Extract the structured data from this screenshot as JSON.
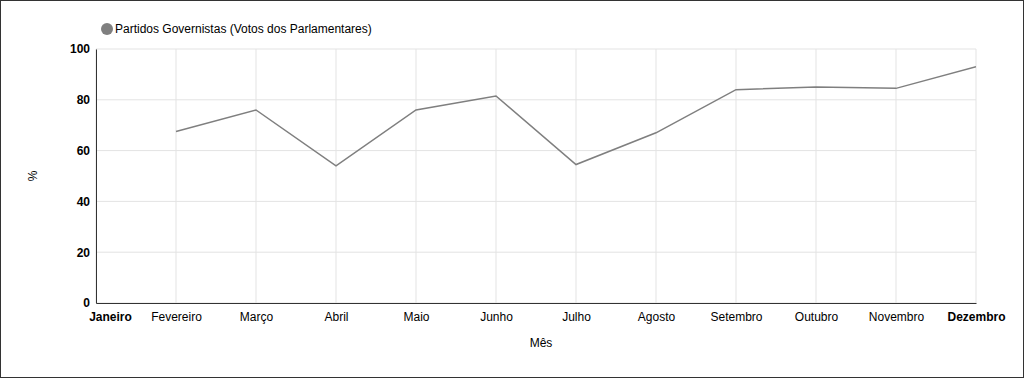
{
  "chart_data": {
    "type": "line",
    "x_label": "Mês",
    "y_label": "%",
    "categories": [
      "Janeiro",
      "Fevereiro",
      "Março",
      "Abril",
      "Maio",
      "Junho",
      "Julho",
      "Agosto",
      "Setembro",
      "Outubro",
      "Novembro",
      "Dezembro"
    ],
    "series": [
      {
        "name": "Partidos Governistas (Votos dos Parlamentares)",
        "color": "#7f7f7f",
        "values": [
          null,
          67.5,
          76,
          54,
          76,
          81.5,
          54.5,
          67,
          84,
          85,
          84.5,
          93
        ]
      }
    ],
    "ylim": [
      0,
      100
    ],
    "yticks": [
      0,
      20,
      40,
      60,
      80,
      100
    ],
    "grid": true,
    "legend": "top-left"
  }
}
